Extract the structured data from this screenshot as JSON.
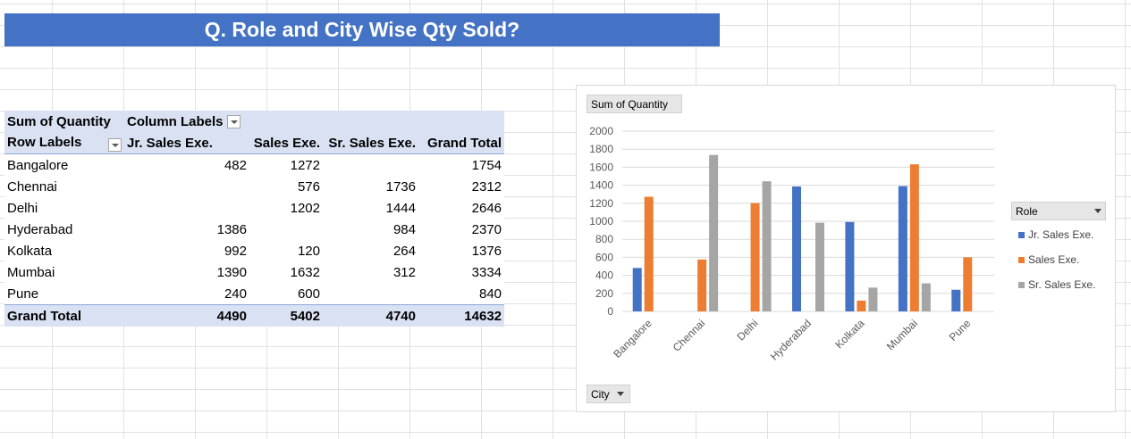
{
  "banner": {
    "title": "Q. Role and City Wise Qty Sold?"
  },
  "pivot": {
    "corner_label": "Sum of Quantity",
    "column_labels": "Column Labels",
    "row_labels": "Row Labels",
    "headers": [
      "Jr. Sales Exe.",
      "Sales Exe.",
      "Sr. Sales Exe.",
      "Grand Total"
    ],
    "rows": [
      {
        "city": "Bangalore",
        "jr": "482",
        "sales": "1272",
        "sr": "",
        "total": "1754"
      },
      {
        "city": "Chennai",
        "jr": "",
        "sales": "576",
        "sr": "1736",
        "total": "2312"
      },
      {
        "city": "Delhi",
        "jr": "",
        "sales": "1202",
        "sr": "1444",
        "total": "2646"
      },
      {
        "city": "Hyderabad",
        "jr": "1386",
        "sales": "",
        "sr": "984",
        "total": "2370"
      },
      {
        "city": "Kolkata",
        "jr": "992",
        "sales": "120",
        "sr": "264",
        "total": "1376"
      },
      {
        "city": "Mumbai",
        "jr": "1390",
        "sales": "1632",
        "sr": "312",
        "total": "3334"
      },
      {
        "city": "Pune",
        "jr": "240",
        "sales": "600",
        "sr": "",
        "total": "840"
      }
    ],
    "grand_total": {
      "label": "Grand Total",
      "jr": "4490",
      "sales": "5402",
      "sr": "4740",
      "total": "14632"
    }
  },
  "chart_controls": {
    "value_button": "Sum of Quantity",
    "legend_button": "Role",
    "axis_button": "City"
  },
  "chart_data": {
    "type": "bar",
    "categories": [
      "Bangalore",
      "Chennai",
      "Delhi",
      "Hyderabad",
      "Kolkata",
      "Mumbai",
      "Pune"
    ],
    "series": [
      {
        "name": "Jr. Sales Exe.",
        "color": "#4472c4",
        "values": [
          482,
          0,
          0,
          1386,
          992,
          1390,
          240
        ]
      },
      {
        "name": "Sales Exe.",
        "color": "#ed7d31",
        "values": [
          1272,
          576,
          1202,
          0,
          120,
          1632,
          600
        ]
      },
      {
        "name": "Sr. Sales Exe.",
        "color": "#a5a5a5",
        "values": [
          0,
          1736,
          1444,
          984,
          264,
          312,
          0
        ]
      }
    ],
    "yticks": [
      0,
      200,
      400,
      600,
      800,
      1000,
      1200,
      1400,
      1600,
      1800,
      2000
    ],
    "ylim": [
      0,
      2000
    ],
    "grid": true,
    "legend": "right"
  }
}
